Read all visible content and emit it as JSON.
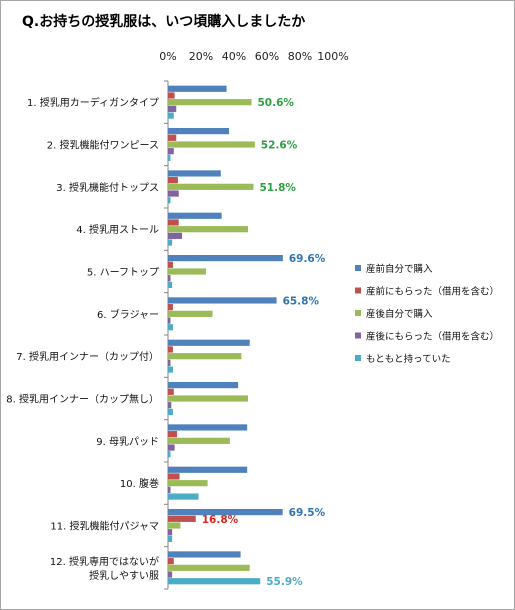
{
  "chart_data": {
    "type": "bar",
    "orientation": "horizontal",
    "title": "Q.お持ちの授乳服は、いつ頃購入しましたか",
    "xlim": [
      0,
      100
    ],
    "x_ticks": [
      "0%",
      "20%",
      "40%",
      "60%",
      "80%",
      "100%"
    ],
    "grid": false,
    "legend_position": "right",
    "categories": [
      [
        "1. 授乳用カーディガンタイプ"
      ],
      [
        "2. 授乳機能付ワンピース"
      ],
      [
        "3. 授乳機能付トップス"
      ],
      [
        "4. 授乳用ストール"
      ],
      [
        "5. ハーフトップ"
      ],
      [
        "6. ブラジャー"
      ],
      [
        "7. 授乳用インナー（カップ付）"
      ],
      [
        "8. 授乳用インナー（カップ無し）"
      ],
      [
        "9. 母乳パッド"
      ],
      [
        "10. 腹巻"
      ],
      [
        "11. 授乳機能付パジャマ"
      ],
      [
        "12. 授乳専用ではないが",
        "授乳しやすい服"
      ]
    ],
    "series": [
      {
        "name": "産前自分で購入",
        "color": "#4f81bd",
        "values": [
          35.5,
          37,
          32,
          32.5,
          69.6,
          65.8,
          49.5,
          42.5,
          48,
          48,
          69.5,
          44
        ]
      },
      {
        "name": "産前にもらった（借用を含む）",
        "color": "#c0504d",
        "values": [
          4,
          5,
          6,
          6.5,
          3,
          3,
          3,
          3.5,
          5.5,
          7,
          16.8,
          3.5
        ]
      },
      {
        "name": "産後自分で購入",
        "color": "#9bbb59",
        "values": [
          50.6,
          52.6,
          51.8,
          48.5,
          23,
          27,
          44.5,
          48.5,
          37.5,
          24,
          7.5,
          49.5
        ]
      },
      {
        "name": "産後にもらった（借用を含む）",
        "color": "#8064a2",
        "values": [
          5,
          3.5,
          6.5,
          8.5,
          1.5,
          1.5,
          1.5,
          2,
          4,
          1.5,
          2.5,
          2.5
        ]
      },
      {
        "name": "もともと持っていた",
        "color": "#4bacc6",
        "values": [
          3.5,
          1.5,
          1.5,
          2.5,
          2.5,
          3,
          3,
          3,
          1.5,
          18.5,
          2.5,
          55.9
        ]
      }
    ],
    "data_labels": [
      {
        "category_index": 0,
        "series_index": 2,
        "text": "50.6%",
        "color": "#2ea043"
      },
      {
        "category_index": 1,
        "series_index": 2,
        "text": "52.6%",
        "color": "#2ea043"
      },
      {
        "category_index": 2,
        "series_index": 2,
        "text": "51.8%",
        "color": "#2ea043"
      },
      {
        "category_index": 4,
        "series_index": 0,
        "text": "69.6%",
        "color": "#2e75b6"
      },
      {
        "category_index": 5,
        "series_index": 0,
        "text": "65.8%",
        "color": "#2e75b6"
      },
      {
        "category_index": 10,
        "series_index": 0,
        "text": "69.5%",
        "color": "#2e75b6"
      },
      {
        "category_index": 10,
        "series_index": 1,
        "text": "16.8%",
        "color": "#e0261d"
      },
      {
        "category_index": 11,
        "series_index": 4,
        "text": "55.9%",
        "color": "#4bacc6"
      }
    ]
  }
}
